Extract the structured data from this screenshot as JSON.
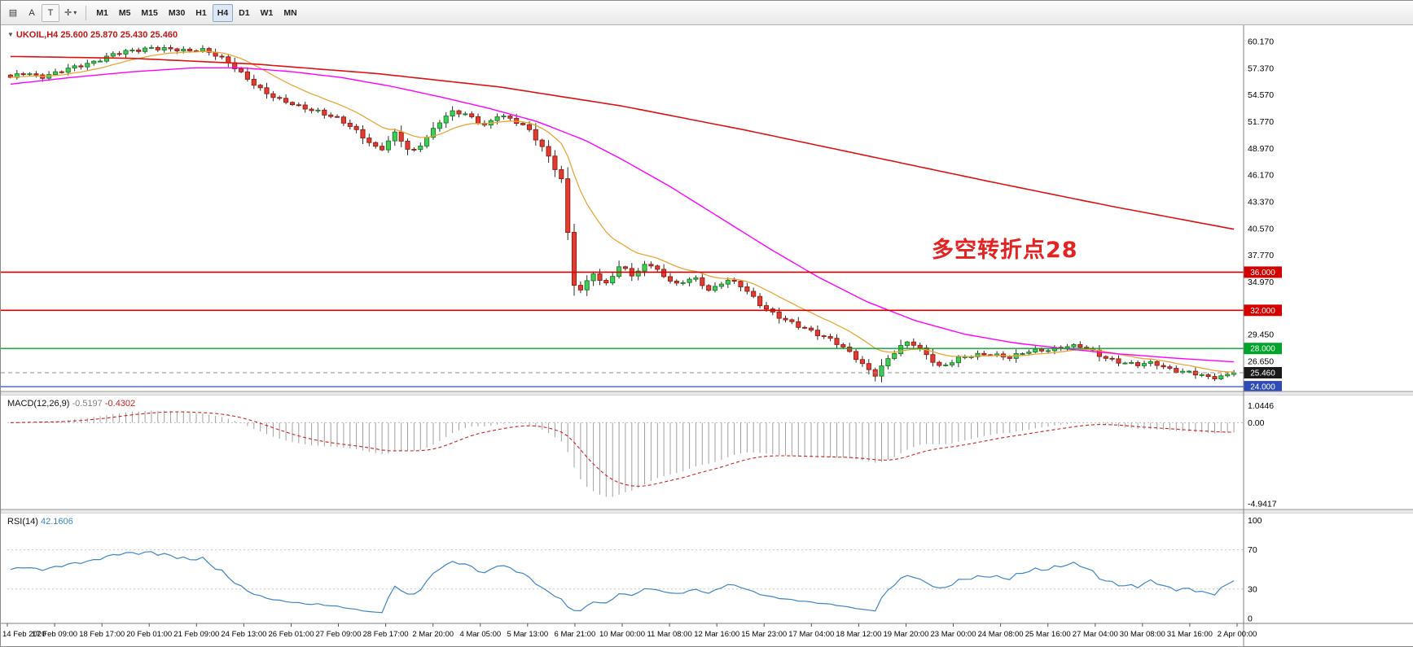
{
  "toolbar": {
    "icons": [
      {
        "name": "chart-grid-icon",
        "glyph": "▤"
      },
      {
        "name": "letter-a-icon",
        "glyph": "A"
      },
      {
        "name": "text-tool-icon",
        "glyph": "T"
      },
      {
        "name": "crosshair-icon",
        "glyph": "✛"
      },
      {
        "name": "dropdown-caret-icon",
        "glyph": "▾"
      }
    ],
    "timeframes": [
      "M1",
      "M5",
      "M15",
      "M30",
      "H1",
      "H4",
      "D1",
      "W1",
      "MN"
    ],
    "active_timeframe": "H4"
  },
  "main_chart": {
    "marker_glyph": "▼",
    "symbol_label": "UKOIL,H4 25.600 25.870 25.430 25.460",
    "annotation": "多空转折点28",
    "price_axis_labels": [
      {
        "text": "60.170",
        "value": 60.17
      },
      {
        "text": "57.370",
        "value": 57.37
      },
      {
        "text": "54.570",
        "value": 54.57
      },
      {
        "text": "51.770",
        "value": 51.77
      },
      {
        "text": "48.970",
        "value": 48.97
      },
      {
        "text": "46.170",
        "value": 46.17
      },
      {
        "text": "43.370",
        "value": 43.37
      },
      {
        "text": "40.570",
        "value": 40.57
      },
      {
        "text": "37.770",
        "value": 37.77
      },
      {
        "text": "34.970",
        "value": 34.97
      },
      {
        "text": "29.450",
        "value": 29.45
      },
      {
        "text": "26.650",
        "value": 26.65
      }
    ],
    "hlines": [
      {
        "label": "36.000",
        "value": 36,
        "color": "#d40000",
        "width": 1.6
      },
      {
        "label": "32.000",
        "value": 32,
        "color": "#d40000",
        "width": 1.6
      },
      {
        "label": "28.000",
        "value": 28,
        "color": "#00a42a",
        "width": 1.4
      },
      {
        "label": "24.000",
        "value": 24,
        "color": "#2f4bb5",
        "width": 1.2
      }
    ],
    "current_price": {
      "label": "25.460",
      "value": 25.46,
      "tag_color": "#1a1a1a"
    }
  },
  "macd": {
    "name": "MACD(12,26,9)",
    "value_main": "-0.5197",
    "value_signal": "-0.4302",
    "scale": [
      {
        "text": "1.0446",
        "value": 1.0446
      },
      {
        "text": "0.00",
        "value": 0
      },
      {
        "text": "-4.9417",
        "value": -4.9417
      }
    ]
  },
  "rsi": {
    "name": "RSI(14)",
    "value": "42.1606",
    "scale": [
      {
        "text": "100",
        "value": 100
      },
      {
        "text": "70",
        "value": 70
      },
      {
        "text": "30",
        "value": 30
      },
      {
        "text": "0",
        "value": 0
      }
    ]
  },
  "time_axis": [
    "14 Feb 2020",
    "17 Feb 09:00",
    "18 Feb 17:00",
    "20 Feb 01:00",
    "21 Feb 09:00",
    "24 Feb 13:00",
    "26 Feb 01:00",
    "27 Feb 09:00",
    "28 Feb 17:00",
    "2 Mar 20:00",
    "4 Mar 05:00",
    "5 Mar 13:00",
    "6 Mar 21:00",
    "10 Mar 00:00",
    "11 Mar 08:00",
    "12 Mar 16:00",
    "15 Mar 23:00",
    "17 Mar 04:00",
    "18 Mar 12:00",
    "19 Mar 20:00",
    "23 Mar 00:00",
    "24 Mar 08:00",
    "25 Mar 16:00",
    "27 Mar 04:00",
    "30 Mar 08:00",
    "31 Mar 16:00",
    "2 Apr 00:00"
  ],
  "chart_data": {
    "type": "candlestick",
    "symbol": "UKOIL",
    "timeframe": "H4",
    "bars": 192,
    "price_range": [
      23.5,
      61.87
    ],
    "ohlc_last": {
      "open": 25.6,
      "high": 25.87,
      "low": 25.43,
      "close": 25.46
    },
    "last_price": 25.46,
    "hlines": [
      36,
      32,
      28,
      24
    ],
    "annotation": {
      "text": "多空转折点28",
      "near_price": 38,
      "color": "#e32222"
    },
    "close_anchors": [
      [
        0,
        56.3
      ],
      [
        0.012,
        57.0
      ],
      [
        0.025,
        56.5
      ],
      [
        0.04,
        56.9
      ],
      [
        0.055,
        57.6
      ],
      [
        0.07,
        58.2
      ],
      [
        0.085,
        58.8
      ],
      [
        0.1,
        59.2
      ],
      [
        0.115,
        59.6
      ],
      [
        0.13,
        59.3
      ],
      [
        0.145,
        59.1
      ],
      [
        0.155,
        59.5
      ],
      [
        0.165,
        59.0
      ],
      [
        0.175,
        58.2
      ],
      [
        0.19,
        56.6
      ],
      [
        0.205,
        55.2
      ],
      [
        0.22,
        54.0
      ],
      [
        0.235,
        53.3
      ],
      [
        0.25,
        53.0
      ],
      [
        0.265,
        52.2
      ],
      [
        0.28,
        51.0
      ],
      [
        0.292,
        49.8
      ],
      [
        0.302,
        48.8
      ],
      [
        0.315,
        50.6
      ],
      [
        0.327,
        48.3
      ],
      [
        0.338,
        49.8
      ],
      [
        0.35,
        51.8
      ],
      [
        0.362,
        52.8
      ],
      [
        0.375,
        52.3
      ],
      [
        0.388,
        51.4
      ],
      [
        0.398,
        52.5
      ],
      [
        0.41,
        51.9
      ],
      [
        0.425,
        50.8
      ],
      [
        0.44,
        48.2
      ],
      [
        0.452,
        45.2
      ],
      [
        0.458,
        36.4
      ],
      [
        0.463,
        33.2
      ],
      [
        0.47,
        34.9
      ],
      [
        0.477,
        36.1
      ],
      [
        0.484,
        34.6
      ],
      [
        0.492,
        35.7
      ],
      [
        0.5,
        36.7
      ],
      [
        0.51,
        35.3
      ],
      [
        0.52,
        37.2
      ],
      [
        0.532,
        35.9
      ],
      [
        0.545,
        34.6
      ],
      [
        0.558,
        35.4
      ],
      [
        0.572,
        34.1
      ],
      [
        0.585,
        35.3
      ],
      [
        0.598,
        34.4
      ],
      [
        0.612,
        32.7
      ],
      [
        0.628,
        31.4
      ],
      [
        0.643,
        30.3
      ],
      [
        0.658,
        29.6
      ],
      [
        0.672,
        29.0
      ],
      [
        0.687,
        27.4
      ],
      [
        0.7,
        25.8
      ],
      [
        0.707,
        25.3
      ],
      [
        0.715,
        26.7
      ],
      [
        0.725,
        28.0
      ],
      [
        0.735,
        28.7
      ],
      [
        0.748,
        27.4
      ],
      [
        0.76,
        26.1
      ],
      [
        0.773,
        26.9
      ],
      [
        0.788,
        27.2
      ],
      [
        0.802,
        27.5
      ],
      [
        0.817,
        27.1
      ],
      [
        0.832,
        27.6
      ],
      [
        0.847,
        27.9
      ],
      [
        0.862,
        28.3
      ],
      [
        0.877,
        28.1
      ],
      [
        0.89,
        27.3
      ],
      [
        0.905,
        26.7
      ],
      [
        0.92,
        26.2
      ],
      [
        0.935,
        26.5
      ],
      [
        0.95,
        25.8
      ],
      [
        0.965,
        25.4
      ],
      [
        0.98,
        24.9
      ],
      [
        1,
        25.46
      ]
    ],
    "ma_overlays": [
      {
        "name": "ma-fast",
        "type": "ema",
        "period": 13,
        "color": "#eaa53a"
      },
      {
        "name": "ma-mid",
        "type": "anchors",
        "color": "#ff00ff",
        "anchors": [
          [
            0,
            55.7
          ],
          [
            0.05,
            56.4
          ],
          [
            0.1,
            57.0
          ],
          [
            0.15,
            57.4
          ],
          [
            0.19,
            57.4
          ],
          [
            0.23,
            57.0
          ],
          [
            0.27,
            56.4
          ],
          [
            0.31,
            55.5
          ],
          [
            0.35,
            54.4
          ],
          [
            0.39,
            53.2
          ],
          [
            0.43,
            51.8
          ],
          [
            0.47,
            49.8
          ],
          [
            0.5,
            47.8
          ],
          [
            0.54,
            44.9
          ],
          [
            0.58,
            41.7
          ],
          [
            0.62,
            38.5
          ],
          [
            0.66,
            35.5
          ],
          [
            0.7,
            32.9
          ],
          [
            0.74,
            30.9
          ],
          [
            0.78,
            29.5
          ],
          [
            0.82,
            28.6
          ],
          [
            0.86,
            28.0
          ],
          [
            0.9,
            27.5
          ],
          [
            0.95,
            27.0
          ],
          [
            1,
            26.6
          ]
        ]
      },
      {
        "name": "ma-slow",
        "type": "anchors",
        "color": "#dd1111",
        "anchors": [
          [
            0,
            58.6
          ],
          [
            0.1,
            58.4
          ],
          [
            0.2,
            57.8
          ],
          [
            0.3,
            56.8
          ],
          [
            0.4,
            55.4
          ],
          [
            0.5,
            53.4
          ],
          [
            0.6,
            50.9
          ],
          [
            0.7,
            48.2
          ],
          [
            0.8,
            45.5
          ],
          [
            0.9,
            42.9
          ],
          [
            1,
            40.5
          ]
        ]
      }
    ],
    "macd": {
      "params": "12,26,9",
      "range_draw": [
        -5.3,
        1.66
      ],
      "last": [
        -0.5197,
        -0.4302
      ]
    },
    "rsi": {
      "period": 14,
      "last": 42.1606,
      "levels": [
        70,
        30
      ],
      "range": [
        0,
        100
      ]
    },
    "colors": {
      "up": "#3ecf52",
      "up_border": "#1d7a2c",
      "down": "#e23b30",
      "down_border": "#8f1d15",
      "ma_fast": "#eaa53a",
      "ma_mid": "#ff00ff",
      "ma_slow": "#dd1111",
      "macd_hist": "#a0a0a0",
      "macd_signal": "#d02020",
      "rsi": "#3d85c8"
    },
    "x_labels": [
      "14 Feb 2020",
      "17 Feb 09:00",
      "18 Feb 17:00",
      "20 Feb 01:00",
      "21 Feb 09:00",
      "24 Feb 13:00",
      "26 Feb 01:00",
      "27 Feb 09:00",
      "28 Feb 17:00",
      "2 Mar 20:00",
      "4 Mar 05:00",
      "5 Mar 13:00",
      "6 Mar 21:00",
      "10 Mar 00:00",
      "11 Mar 08:00",
      "12 Mar 16:00",
      "15 Mar 23:00",
      "17 Mar 04:00",
      "18 Mar 12:00",
      "19 Mar 20:00",
      "23 Mar 00:00",
      "24 Mar 08:00",
      "25 Mar 16:00",
      "27 Mar 04:00",
      "30 Mar 08:00",
      "31 Mar 16:00",
      "2 Apr 00:00"
    ]
  }
}
